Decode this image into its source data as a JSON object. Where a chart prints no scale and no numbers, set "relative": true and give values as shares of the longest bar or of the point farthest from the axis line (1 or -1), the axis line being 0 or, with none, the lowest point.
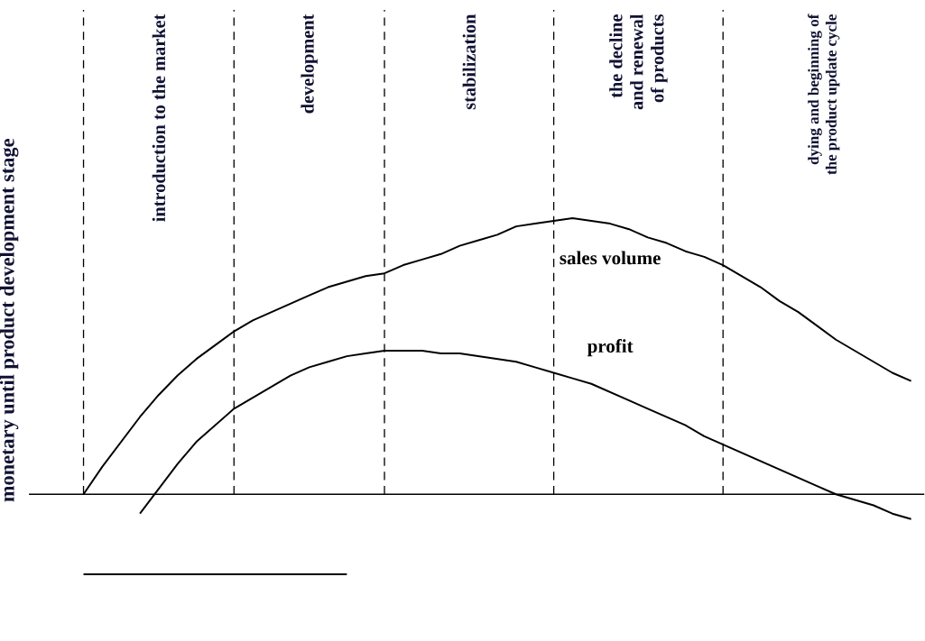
{
  "chart_data": {
    "type": "line",
    "relative": true,
    "marker": "none",
    "line_style": "solid",
    "categories": [
      null,
      null,
      null,
      null,
      null,
      null,
      null,
      null,
      null,
      null,
      null,
      null,
      null,
      null,
      null,
      null,
      null,
      null,
      null,
      null,
      null,
      null,
      null,
      null,
      null,
      null,
      null,
      null,
      null,
      null,
      null,
      null,
      null,
      null,
      null,
      null,
      null,
      null,
      null,
      null,
      null,
      null,
      null,
      null,
      null
    ],
    "series": [
      {
        "name": "sales volume",
        "color": "#000000",
        "values": [
          0,
          0.1,
          0.19,
          0.28,
          0.36,
          0.43,
          0.49,
          0.54,
          0.59,
          0.63,
          0.66,
          0.69,
          0.72,
          0.75,
          0.77,
          0.79,
          0.8,
          0.83,
          0.85,
          0.87,
          0.9,
          0.92,
          0.94,
          0.97,
          0.98,
          0.99,
          1.0,
          0.99,
          0.98,
          0.96,
          0.93,
          0.91,
          0.88,
          0.86,
          0.83,
          0.79,
          0.75,
          0.7,
          0.66,
          0.61,
          0.56,
          0.52,
          0.48,
          0.44,
          0.41
        ]
      },
      {
        "name": "profit",
        "color": "#000000",
        "values": [
          null,
          null,
          null,
          -0.07,
          0.02,
          0.11,
          0.19,
          0.25,
          0.31,
          0.35,
          0.39,
          0.43,
          0.46,
          0.48,
          0.5,
          0.51,
          0.52,
          0.52,
          0.52,
          0.51,
          0.51,
          0.5,
          0.49,
          0.48,
          0.46,
          0.44,
          0.42,
          0.4,
          0.37,
          0.34,
          0.31,
          0.28,
          0.25,
          0.21,
          0.18,
          0.15,
          0.12,
          0.09,
          0.06,
          0.03,
          0.0,
          -0.02,
          -0.04,
          -0.07,
          -0.09
        ]
      },
      {
        "color": "#000000",
        "values": [
          -0.29,
          -0.29,
          -0.29,
          -0.29,
          -0.29,
          -0.29,
          -0.29,
          -0.29,
          -0.29,
          -0.29,
          -0.29,
          -0.29,
          -0.29,
          -0.29,
          -0.29,
          null,
          null,
          null,
          null,
          null,
          null,
          null,
          null,
          null,
          null,
          null,
          null,
          null,
          null,
          null,
          null,
          null,
          null,
          null,
          null,
          null,
          null,
          null,
          null,
          null,
          null,
          null,
          null,
          null,
          null
        ]
      }
    ],
    "annotations": [
      "monetary until product development stage",
      "introduction to the market",
      "development",
      "stabilization",
      "the decline and renewal of products",
      "dying and beginning of the product update cycle"
    ]
  }
}
